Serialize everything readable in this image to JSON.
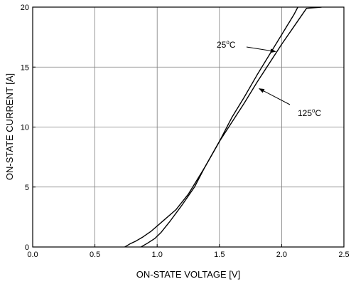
{
  "chart_data": {
    "type": "line",
    "xlabel": "ON-STATE VOLTAGE [V]",
    "ylabel": "ON-STATE CURRENT [A]",
    "xlim": [
      0,
      2.5
    ],
    "ylim": [
      0,
      20
    ],
    "xticks": [
      0.0,
      0.5,
      1.0,
      1.5,
      2.0,
      2.5
    ],
    "xtick_labels": [
      "0.0",
      "0.5",
      "1.0",
      "1.5",
      "2.0",
      "2.5"
    ],
    "yticks": [
      0,
      5,
      10,
      15,
      20
    ],
    "ytick_labels": [
      "0",
      "5",
      "10",
      "15",
      "20"
    ],
    "grid": true,
    "series": [
      {
        "name": "25°C",
        "points": [
          [
            0.74,
            0
          ],
          [
            0.78,
            0.25
          ],
          [
            0.83,
            0.5
          ],
          [
            0.88,
            0.8
          ],
          [
            0.95,
            1.3
          ],
          [
            1.05,
            2.2
          ],
          [
            1.15,
            3.1
          ],
          [
            1.25,
            4.4
          ],
          [
            1.38,
            6.6
          ],
          [
            1.5,
            8.8
          ],
          [
            1.6,
            10.8
          ],
          [
            1.7,
            12.5
          ],
          [
            1.8,
            14.3
          ],
          [
            1.9,
            16.0
          ],
          [
            2.0,
            17.7
          ],
          [
            2.1,
            19.4
          ],
          [
            2.13,
            20.0
          ]
        ]
      },
      {
        "name": "125°C",
        "points": [
          [
            0.87,
            0
          ],
          [
            0.92,
            0.3
          ],
          [
            0.98,
            0.7
          ],
          [
            1.03,
            1.2
          ],
          [
            1.1,
            2.1
          ],
          [
            1.2,
            3.5
          ],
          [
            1.3,
            5.0
          ],
          [
            1.38,
            6.6
          ],
          [
            1.5,
            8.8
          ],
          [
            1.6,
            10.4
          ],
          [
            1.7,
            12.0
          ],
          [
            1.8,
            13.7
          ],
          [
            1.9,
            15.3
          ],
          [
            2.0,
            16.9
          ],
          [
            2.1,
            18.4
          ],
          [
            2.2,
            19.9
          ],
          [
            2.32,
            20.0
          ]
        ]
      }
    ],
    "annotations": [
      {
        "label_base": "25",
        "label_sup": "o",
        "label_unit": "C",
        "series": "25°C",
        "arrow_to": [
          1.95,
          16.3
        ]
      },
      {
        "label_base": "125",
        "label_sup": "o",
        "label_unit": "C",
        "series": "125°C",
        "arrow_to": [
          1.82,
          13.2
        ]
      }
    ]
  }
}
